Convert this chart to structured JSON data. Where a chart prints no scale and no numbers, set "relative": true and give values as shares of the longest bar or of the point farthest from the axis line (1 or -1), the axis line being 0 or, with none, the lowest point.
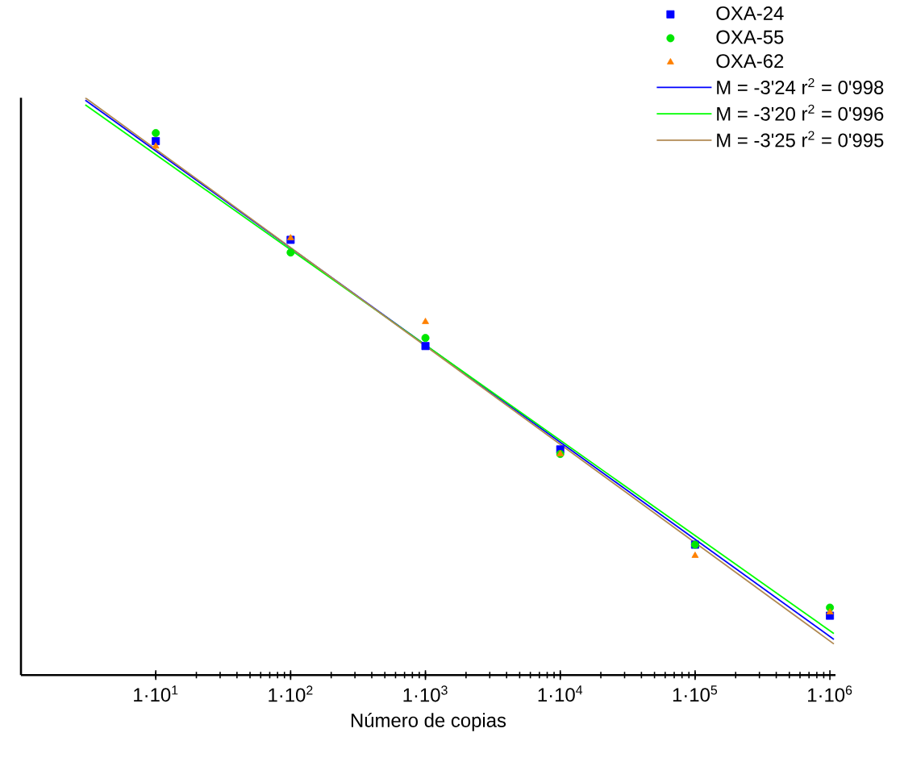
{
  "chart_data": {
    "type": "scatter",
    "xlabel": "Número de copias",
    "relative": true,
    "log": "x",
    "xlim": [
      1,
      1100000
    ],
    "xticks": [
      {
        "value": 10,
        "label": "1·10$^{1}$"
      },
      {
        "value": 100,
        "label": "1·10$^{2}$"
      },
      {
        "value": 1000,
        "label": "1·10$^{3}$"
      },
      {
        "value": 10000,
        "label": "1·10$^{4}$"
      },
      {
        "value": 100000,
        "label": "1·10$^{5}$"
      },
      {
        "value": 1000000,
        "label": "1·10$^{6}$"
      }
    ],
    "legend": "top right",
    "grid": false,
    "series": [
      {
        "name": "OXA-24",
        "marker": "square",
        "color": "#0000ff",
        "x": [
          10,
          100,
          1000,
          10000,
          100000,
          1000000
        ],
        "values": [
          0.925,
          0.754,
          0.57,
          0.391,
          0.226,
          0.103
        ]
      },
      {
        "name": "OXA-55",
        "marker": "circle",
        "color": "#00e600",
        "x": [
          10,
          100,
          1000,
          10000,
          100000,
          1000000
        ],
        "values": [
          0.939,
          0.732,
          0.584,
          0.383,
          0.226,
          0.117
        ]
      },
      {
        "name": "OXA-62",
        "marker": "triangle",
        "color": "#ff8000",
        "x": [
          10,
          100,
          1000,
          10000,
          100000,
          1000000
        ],
        "values": [
          0.916,
          0.757,
          0.612,
          0.383,
          0.207,
          0.109
        ]
      },
      {
        "name": "M = -3'24  r$^{2}$ = 0'998",
        "type": "line",
        "marker": "none",
        "color": "#0000ff",
        "x": [
          3,
          1070000
        ],
        "values": [
          0.996,
          0.062
        ]
      },
      {
        "name": "M = -3'20  r$^{2}$ = 0'996",
        "type": "line",
        "marker": "none",
        "color": "#00ff00",
        "x": [
          3,
          1070000
        ],
        "values": [
          0.988,
          0.072
        ]
      },
      {
        "name": "M = -3'25  r$^{2}$ = 0'995",
        "type": "line",
        "marker": "none",
        "color": "#b08850",
        "x": [
          3,
          1070000
        ],
        "values": [
          1,
          0.054
        ]
      }
    ]
  }
}
